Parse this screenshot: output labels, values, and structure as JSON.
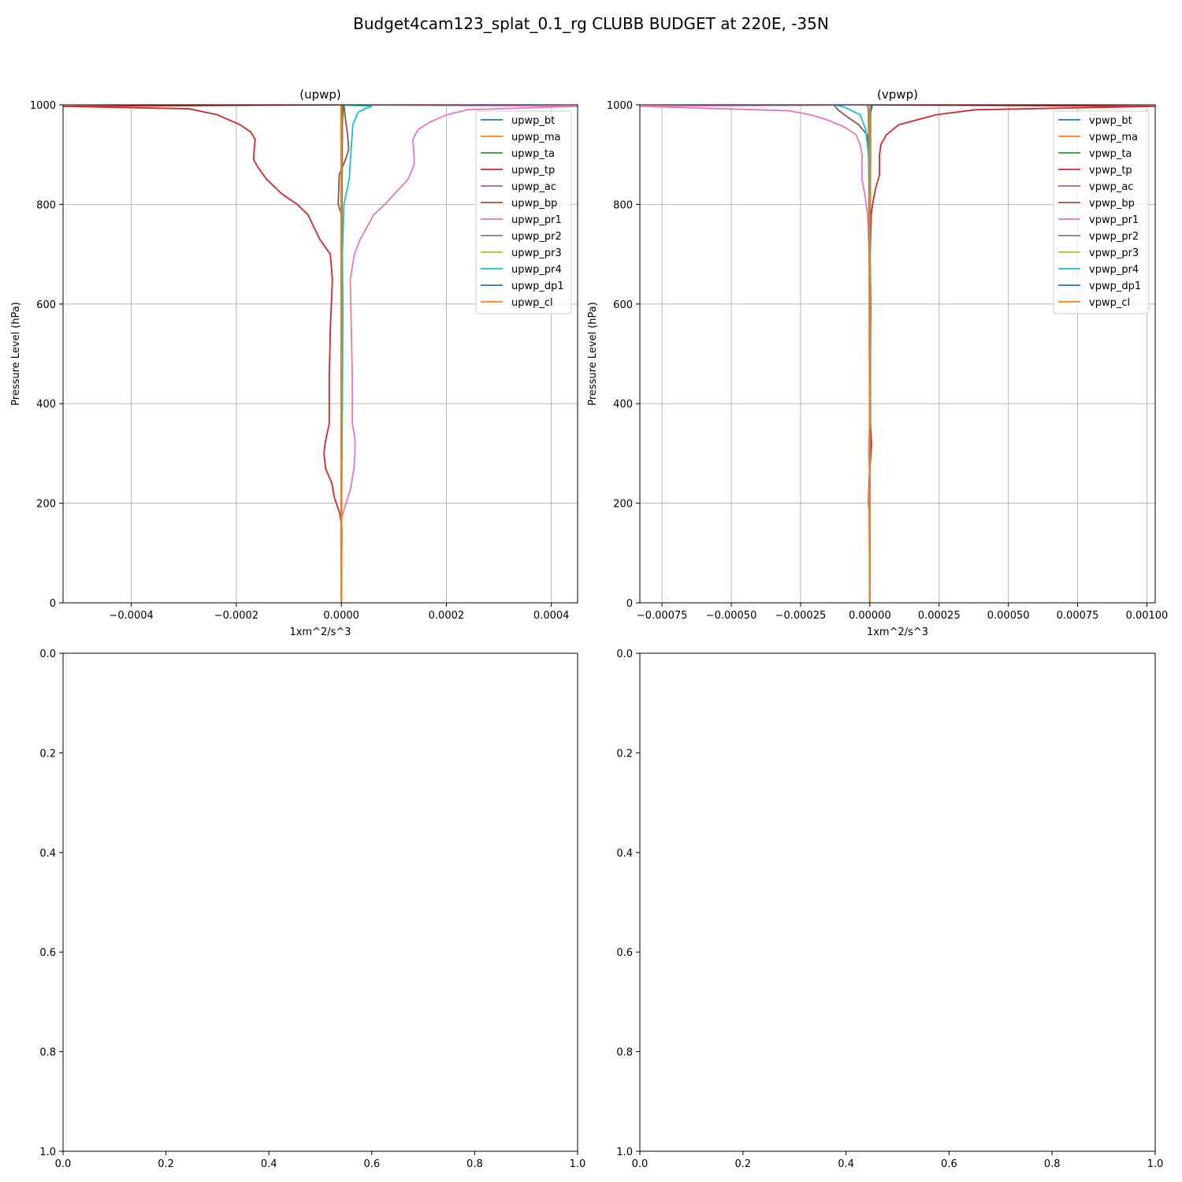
{
  "figure": {
    "title": "Budget4cam123_splat_0.1_rg CLUBB BUDGET at 220E, -35N"
  },
  "colors": {
    "bt": "#1f77b4",
    "ma": "#ff7f0e",
    "ta": "#2ca02c",
    "tp": "#d62728",
    "ac": "#9467bd",
    "bp": "#8c564b",
    "pr1": "#e377c2",
    "pr2": "#7f7f7f",
    "pr3": "#bcbd22",
    "pr4": "#17becf",
    "dp1": "#1f77b4",
    "cl": "#ff7f0e",
    "grid": "#b0b0b0",
    "axis": "#000000"
  },
  "chart_data": [
    {
      "type": "line",
      "title": "(upwp)",
      "xlabel": "1xm^2/s^3",
      "ylabel": "Pressure Level (hPa)",
      "xlim": [
        -0.00053,
        0.00045
      ],
      "ylim": [
        1000,
        0
      ],
      "xticks": [
        -0.0004,
        -0.0002,
        0.0,
        0.0002,
        0.0004
      ],
      "xtick_labels": [
        "−0.0004",
        "−0.0002",
        "0.0000",
        "0.0002",
        "0.0004"
      ],
      "yticks": [
        0,
        200,
        400,
        600,
        800,
        1000
      ],
      "ytick_labels": [
        "0",
        "200",
        "400",
        "600",
        "800",
        "1000"
      ],
      "grid": true,
      "legend_position": "top-right",
      "series": [
        {
          "name": "upwp_bt",
          "color_key": "bt",
          "points": [
            [
              0,
              0
            ],
            [
              0,
              500
            ],
            [
              0,
              1000
            ]
          ]
        },
        {
          "name": "upwp_ma",
          "color_key": "ma",
          "points": [
            [
              0,
              0
            ],
            [
              2e-06,
              500
            ],
            [
              0,
              1000
            ]
          ]
        },
        {
          "name": "upwp_ta",
          "color_key": "ta",
          "points": [
            [
              0,
              0
            ],
            [
              0,
              500
            ],
            [
              2e-06,
              960
            ],
            [
              4e-06,
              1000
            ]
          ]
        },
        {
          "name": "upwp_tp",
          "color_key": "tp",
          "points": [
            [
              0,
              0
            ],
            [
              1e-06,
              150
            ],
            [
              -3e-06,
              180
            ],
            [
              -1.3e-05,
              210
            ],
            [
              -1.8e-05,
              240
            ],
            [
              -3e-05,
              270
            ],
            [
              -3.3e-05,
              300
            ],
            [
              -3.1e-05,
              320
            ],
            [
              -2.3e-05,
              360
            ],
            [
              -2.3e-05,
              450
            ],
            [
              -2.1e-05,
              550
            ],
            [
              -1.7e-05,
              650
            ],
            [
              -2.1e-05,
              700
            ],
            [
              -4.1e-05,
              730
            ],
            [
              -6.4e-05,
              780
            ],
            [
              -8.4e-05,
              800
            ],
            [
              -0.000112,
              820
            ],
            [
              -0.000142,
              850
            ],
            [
              -0.000159,
              875
            ],
            [
              -0.000167,
              890
            ],
            [
              -0.000166,
              910
            ],
            [
              -0.000164,
              930
            ],
            [
              -0.000172,
              945
            ],
            [
              -0.000193,
              960
            ],
            [
              -0.000236,
              980
            ],
            [
              -0.00029,
              992
            ],
            [
              -0.00053,
              997
            ],
            [
              0,
              1000
            ]
          ]
        },
        {
          "name": "upwp_ac",
          "color_key": "ac",
          "points": [
            [
              0,
              0
            ],
            [
              0,
              500
            ],
            [
              0,
              1000
            ]
          ]
        },
        {
          "name": "upwp_bp",
          "color_key": "bp",
          "points": [
            [
              0,
              0
            ],
            [
              0,
              500
            ],
            [
              0,
              780
            ],
            [
              -6e-06,
              800
            ],
            [
              -4e-06,
              860
            ],
            [
              8e-06,
              890
            ],
            [
              1.4e-05,
              910
            ],
            [
              1.2e-05,
              940
            ],
            [
              8e-06,
              970
            ],
            [
              5e-06,
              1000
            ]
          ]
        },
        {
          "name": "upwp_pr1",
          "color_key": "pr1",
          "points": [
            [
              0,
              0
            ],
            [
              -1e-06,
              150
            ],
            [
              2e-06,
              175
            ],
            [
              9e-06,
              200
            ],
            [
              1.8e-05,
              230
            ],
            [
              2.4e-05,
              270
            ],
            [
              2.6e-05,
              300
            ],
            [
              2.6e-05,
              330
            ],
            [
              2.1e-05,
              360
            ],
            [
              2.1e-05,
              450
            ],
            [
              1.9e-05,
              550
            ],
            [
              1.7e-05,
              650
            ],
            [
              2.5e-05,
              700
            ],
            [
              3.6e-05,
              730
            ],
            [
              6.2e-05,
              780
            ],
            [
              8.3e-05,
              800
            ],
            [
              0.000109,
              830
            ],
            [
              0.000127,
              850
            ],
            [
              0.000139,
              880
            ],
            [
              0.000138,
              910
            ],
            [
              0.000136,
              930
            ],
            [
              0.000146,
              950
            ],
            [
              0.000168,
              965
            ],
            [
              0.000201,
              980
            ],
            [
              0.00024,
              990
            ],
            [
              0.00045,
              997
            ],
            [
              0,
              1000
            ]
          ]
        },
        {
          "name": "upwp_pr2",
          "color_key": "pr2",
          "points": [
            [
              0,
              0
            ],
            [
              0,
              500
            ],
            [
              2e-06,
              970
            ],
            [
              0,
              1000
            ]
          ]
        },
        {
          "name": "upwp_pr3",
          "color_key": "pr3",
          "points": [
            [
              0,
              0
            ],
            [
              1e-06,
              500
            ],
            [
              -1e-06,
              1000
            ]
          ]
        },
        {
          "name": "upwp_pr4",
          "color_key": "pr4",
          "points": [
            [
              0,
              0
            ],
            [
              0,
              200
            ],
            [
              2e-06,
              400
            ],
            [
              3e-06,
              600
            ],
            [
              2e-06,
              700
            ],
            [
              5e-06,
              800
            ],
            [
              1.5e-05,
              850
            ],
            [
              1.8e-05,
              900
            ],
            [
              2.2e-05,
              960
            ],
            [
              3.2e-05,
              985
            ],
            [
              4.5e-05,
              992
            ],
            [
              5.8e-05,
              997
            ],
            [
              0,
              1000
            ]
          ]
        },
        {
          "name": "upwp_dp1",
          "color_key": "dp1",
          "points": [
            [
              0,
              0
            ],
            [
              0,
              980
            ],
            [
              2e-06,
              1000
            ]
          ]
        },
        {
          "name": "upwp_cl",
          "color_key": "cl",
          "points": [
            [
              0,
              0
            ],
            [
              0,
              500
            ],
            [
              0,
              1000
            ]
          ]
        }
      ]
    },
    {
      "type": "line",
      "title": "(vpwp)",
      "xlabel": "1xm^2/s^3",
      "ylabel": "Pressure Level (hPa)",
      "xlim": [
        -0.00083,
        0.00103
      ],
      "ylim": [
        1000,
        0
      ],
      "xticks": [
        -0.00075,
        -0.0005,
        -0.00025,
        0.0,
        0.00025,
        0.0005,
        0.00075,
        0.001
      ],
      "xtick_labels": [
        "−0.00075",
        "−0.00050",
        "−0.00025",
        "0.00000",
        "0.00025",
        "0.00050",
        "0.00075",
        "0.00100"
      ],
      "yticks": [
        0,
        200,
        400,
        600,
        800,
        1000
      ],
      "ytick_labels": [
        "0",
        "200",
        "400",
        "600",
        "800",
        "1000"
      ],
      "grid": true,
      "legend_position": "top-right",
      "series": [
        {
          "name": "vpwp_bt",
          "color_key": "bt",
          "points": [
            [
              0,
              0
            ],
            [
              0,
              500
            ],
            [
              0,
              1000
            ]
          ]
        },
        {
          "name": "vpwp_ma",
          "color_key": "ma",
          "points": [
            [
              0,
              0
            ],
            [
              0,
              500
            ],
            [
              0,
              1000
            ]
          ]
        },
        {
          "name": "vpwp_ta",
          "color_key": "ta",
          "points": [
            [
              0,
              0
            ],
            [
              0,
              500
            ],
            [
              3e-06,
              1000
            ]
          ]
        },
        {
          "name": "vpwp_tp",
          "color_key": "tp",
          "points": [
            [
              0,
              0
            ],
            [
              0,
              170
            ],
            [
              -5e-06,
              200
            ],
            [
              -2e-06,
              250
            ],
            [
              4e-06,
              300
            ],
            [
              6e-06,
              320
            ],
            [
              2e-06,
              360
            ],
            [
              2e-06,
              500
            ],
            [
              3e-06,
              600
            ],
            [
              1e-06,
              700
            ],
            [
              5e-06,
              780
            ],
            [
              1e-05,
              800
            ],
            [
              2e-05,
              830
            ],
            [
              3.5e-05,
              860
            ],
            [
              3.5e-05,
              900
            ],
            [
              4e-05,
              920
            ],
            [
              6e-05,
              940
            ],
            [
              0.000105,
              960
            ],
            [
              0.00024,
              980
            ],
            [
              0.00038,
              990
            ],
            [
              0.00103,
              997
            ],
            [
              0,
              1000
            ]
          ]
        },
        {
          "name": "vpwp_ac",
          "color_key": "ac",
          "points": [
            [
              0,
              0
            ],
            [
              0,
              500
            ],
            [
              0,
              1000
            ]
          ]
        },
        {
          "name": "vpwp_bp",
          "color_key": "bp",
          "points": [
            [
              0,
              0
            ],
            [
              0,
              900
            ],
            [
              -1e-05,
              940
            ],
            [
              -4e-05,
              960
            ],
            [
              -8e-05,
              975
            ],
            [
              -0.000115,
              990
            ],
            [
              -0.00013,
              1000
            ]
          ]
        },
        {
          "name": "vpwp_pr1",
          "color_key": "pr1",
          "points": [
            [
              0,
              0
            ],
            [
              -3e-06,
              200
            ],
            [
              0,
              250
            ],
            [
              -4e-06,
              300
            ],
            [
              1e-06,
              400
            ],
            [
              -2e-06,
              500
            ],
            [
              -2e-06,
              700
            ],
            [
              -8e-06,
              780
            ],
            [
              -1.8e-05,
              820
            ],
            [
              -2.8e-05,
              850
            ],
            [
              -2.8e-05,
              900
            ],
            [
              -3.5e-05,
              920
            ],
            [
              -5e-05,
              940
            ],
            [
              -9e-05,
              955
            ],
            [
              -0.000155,
              970
            ],
            [
              -0.000215,
              980
            ],
            [
              -0.00029,
              988
            ],
            [
              -0.00083,
              997
            ],
            [
              0,
              1000
            ]
          ]
        },
        {
          "name": "vpwp_pr2",
          "color_key": "pr2",
          "points": [
            [
              0,
              0
            ],
            [
              0,
              500
            ],
            [
              -5e-06,
              990
            ],
            [
              -1e-05,
              1000
            ]
          ]
        },
        {
          "name": "vpwp_pr3",
          "color_key": "pr3",
          "points": [
            [
              0,
              0
            ],
            [
              0,
              500
            ],
            [
              0,
              1000
            ]
          ]
        },
        {
          "name": "vpwp_pr4",
          "color_key": "pr4",
          "points": [
            [
              0,
              0
            ],
            [
              0,
              800
            ],
            [
              -5e-06,
              900
            ],
            [
              -1.5e-05,
              950
            ],
            [
              -3.5e-05,
              980
            ],
            [
              -9e-05,
              995
            ],
            [
              -0.000125,
              1000
            ]
          ]
        },
        {
          "name": "vpwp_dp1",
          "color_key": "dp1",
          "points": [
            [
              0,
              0
            ],
            [
              0,
              980
            ],
            [
              8e-06,
              995
            ],
            [
              8e-06,
              1000
            ]
          ]
        },
        {
          "name": "vpwp_cl",
          "color_key": "cl",
          "points": [
            [
              0,
              0
            ],
            [
              0,
              500
            ],
            [
              0,
              1000
            ]
          ]
        }
      ]
    },
    {
      "type": "line",
      "title": "",
      "xlim": [
        0,
        1
      ],
      "ylim": [
        0,
        1
      ],
      "xticks": [
        0,
        0.2,
        0.4,
        0.6,
        0.8,
        1.0
      ],
      "xtick_labels": [
        "0.0",
        "0.2",
        "0.4",
        "0.6",
        "0.8",
        "1.0"
      ],
      "yticks": [
        0,
        0.2,
        0.4,
        0.6,
        0.8,
        1.0
      ],
      "ytick_labels": [
        "0.0",
        "0.2",
        "0.4",
        "0.6",
        "0.8",
        "1.0"
      ],
      "grid": false,
      "series": []
    },
    {
      "type": "line",
      "title": "",
      "xlim": [
        0,
        1
      ],
      "ylim": [
        0,
        1
      ],
      "xticks": [
        0,
        0.2,
        0.4,
        0.6,
        0.8,
        1.0
      ],
      "xtick_labels": [
        "0.0",
        "0.2",
        "0.4",
        "0.6",
        "0.8",
        "1.0"
      ],
      "yticks": [
        0,
        0.2,
        0.4,
        0.6,
        0.8,
        1.0
      ],
      "ytick_labels": [
        "0.0",
        "0.2",
        "0.4",
        "0.6",
        "0.8",
        "1.0"
      ],
      "grid": false,
      "series": []
    }
  ]
}
